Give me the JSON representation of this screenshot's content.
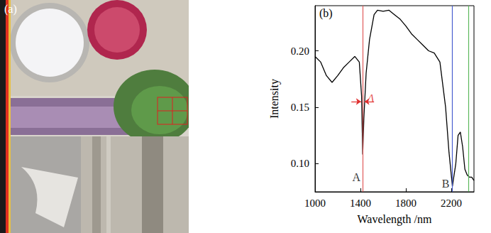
{
  "panel_a": {
    "label": "(a)"
  },
  "chart_data": {
    "type": "line",
    "panel_label": "(b)",
    "x_label": "Wavelength /nm",
    "y_label": "Intensity",
    "color": "#000000",
    "x": [
      1000,
      1050,
      1100,
      1150,
      1200,
      1250,
      1300,
      1350,
      1390,
      1410,
      1420,
      1430,
      1450,
      1480,
      1520,
      1550,
      1600,
      1650,
      1700,
      1750,
      1800,
      1850,
      1900,
      1950,
      2000,
      2050,
      2100,
      2150,
      2180,
      2210,
      2240,
      2260,
      2280,
      2300,
      2320,
      2340,
      2360,
      2380,
      2400
    ],
    "values": [
      0.195,
      0.19,
      0.178,
      0.172,
      0.178,
      0.185,
      0.19,
      0.195,
      0.19,
      0.16,
      0.108,
      0.14,
      0.18,
      0.21,
      0.232,
      0.236,
      0.235,
      0.236,
      0.232,
      0.228,
      0.222,
      0.215,
      0.21,
      0.205,
      0.2,
      0.198,
      0.19,
      0.15,
      0.11,
      0.08,
      0.1,
      0.125,
      0.128,
      0.115,
      0.095,
      0.09,
      0.088,
      0.088,
      0.085
    ],
    "xlim": [
      1000,
      2400
    ],
    "xticks": [
      1000,
      1400,
      1800,
      2200
    ],
    "ylim": [
      0.075,
      0.24
    ],
    "yticks": [
      {
        "value": 0.1,
        "label": "0.10"
      },
      0.15,
      {
        "value": 0.2,
        "label": "0.20"
      }
    ],
    "grid": false,
    "vlines": [
      {
        "x": 1420,
        "color": "#e05a5a"
      },
      {
        "x": 2210,
        "color": "#4a5fd0"
      },
      {
        "x": 2350,
        "color": "#5cb85c"
      }
    ],
    "annotations": [
      {
        "text": "A",
        "x": 1365,
        "y": 0.088
      },
      {
        "text": "B",
        "x": 2150,
        "y": 0.082
      },
      {
        "text": "Δ",
        "x": 1490,
        "y": 0.158,
        "color": "#e03030",
        "arrows": [
          {
            "from": 1320,
            "to": 1405,
            "y": 0.155
          },
          {
            "from": 1520,
            "to": 1435,
            "y": 0.155
          }
        ]
      }
    ]
  }
}
